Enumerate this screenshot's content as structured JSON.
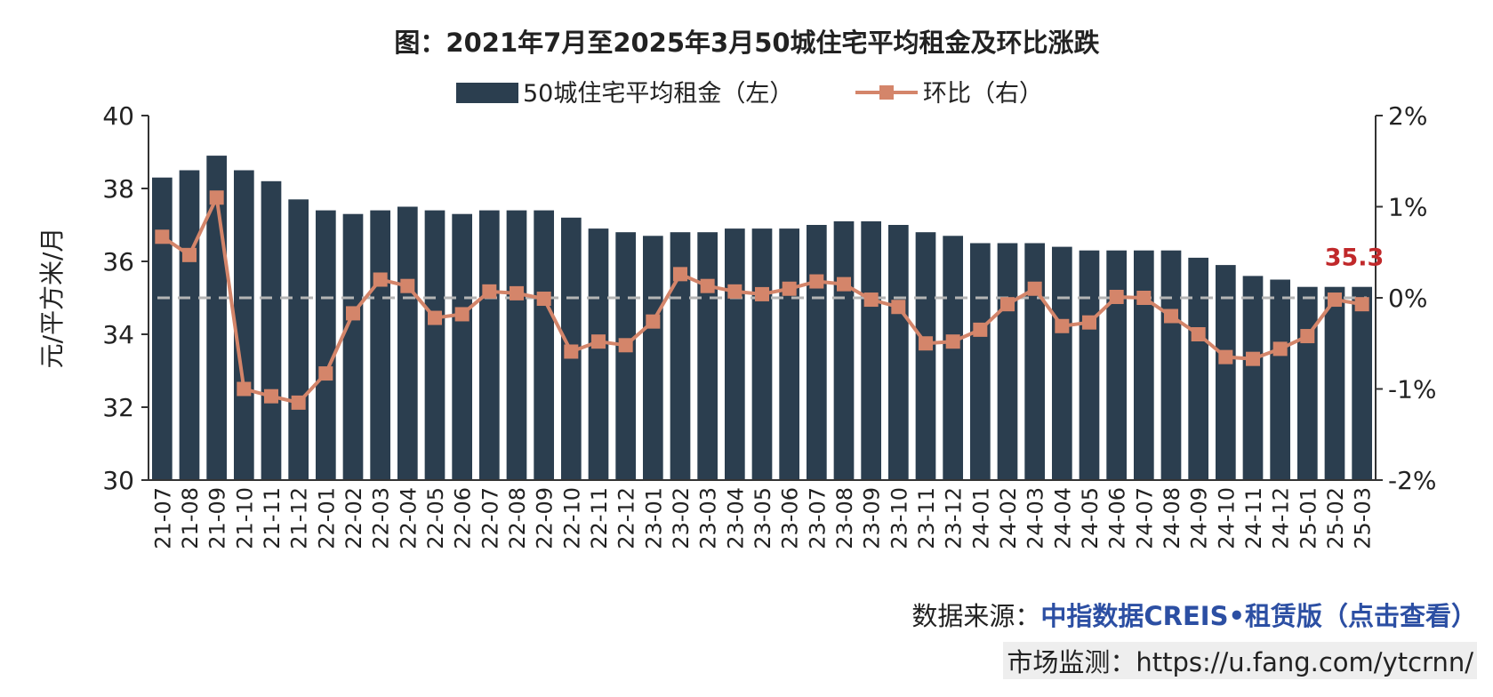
{
  "colors": {
    "bar": "#2b3e4f",
    "line": "#d4856a",
    "zero_line": "#b5b5b5",
    "axis": "#333333",
    "annotation": "#c0282a",
    "source_link": "#2c4fa3"
  },
  "chart_data": {
    "type": "bar",
    "title": "图：2021年7月至2025年3月50城住宅平均租金及环比涨跌",
    "ylabel": "元/平方米/月",
    "ylim": [
      30,
      40
    ],
    "yticks": [
      "30",
      "32",
      "34",
      "36",
      "38",
      "40"
    ],
    "y2lim": [
      -2,
      2
    ],
    "y2ticks": [
      "-2%",
      "-1%",
      "0%",
      "1%",
      "2%"
    ],
    "legend_position": "top",
    "grid": false,
    "categories": [
      "21-07",
      "21-08",
      "21-09",
      "21-10",
      "21-11",
      "21-12",
      "22-01",
      "22-02",
      "22-03",
      "22-04",
      "22-05",
      "22-06",
      "22-07",
      "22-08",
      "22-09",
      "22-10",
      "22-11",
      "22-12",
      "23-01",
      "23-02",
      "23-03",
      "23-04",
      "23-05",
      "23-06",
      "23-07",
      "23-08",
      "23-09",
      "23-10",
      "23-11",
      "23-12",
      "24-01",
      "24-02",
      "24-03",
      "24-04",
      "24-05",
      "24-06",
      "24-07",
      "24-08",
      "24-09",
      "24-10",
      "24-11",
      "24-12",
      "25-01",
      "25-02",
      "25-03"
    ],
    "series": [
      {
        "name": "50城住宅平均租金（左）",
        "type": "bar",
        "axis": "left",
        "values": [
          38.3,
          38.5,
          38.9,
          38.5,
          38.2,
          37.7,
          37.4,
          37.3,
          37.4,
          37.5,
          37.4,
          37.3,
          37.4,
          37.4,
          37.4,
          37.2,
          36.9,
          36.8,
          36.7,
          36.8,
          36.8,
          36.9,
          36.9,
          36.9,
          37.0,
          37.1,
          37.1,
          37.0,
          36.8,
          36.7,
          36.5,
          36.5,
          36.5,
          36.4,
          36.3,
          36.3,
          36.3,
          36.3,
          36.1,
          35.9,
          35.6,
          35.5,
          35.3,
          35.3,
          35.3
        ]
      },
      {
        "name": "环比（右）",
        "type": "line",
        "axis": "right",
        "values": [
          0.67,
          0.47,
          1.1,
          -1.0,
          -1.08,
          -1.15,
          -0.83,
          -0.17,
          0.2,
          0.13,
          -0.22,
          -0.18,
          0.07,
          0.05,
          -0.01,
          -0.59,
          -0.48,
          -0.52,
          -0.26,
          0.26,
          0.13,
          0.07,
          0.04,
          0.1,
          0.18,
          0.15,
          -0.02,
          -0.1,
          -0.5,
          -0.48,
          -0.35,
          -0.07,
          0.1,
          -0.31,
          -0.27,
          0.01,
          0.0,
          -0.2,
          -0.4,
          -0.65,
          -0.67,
          -0.56,
          -0.42,
          -0.02,
          -0.07
        ]
      }
    ],
    "annotations": [
      {
        "category": "25-02",
        "text": "35.3"
      }
    ]
  },
  "footer": {
    "source_label": "数据来源：",
    "source_link": "中指数据CREIS•租赁版（点击查看）",
    "monitor_label": "市场监测：",
    "monitor_url": "https://u.fang.com/ytcrnn/"
  }
}
